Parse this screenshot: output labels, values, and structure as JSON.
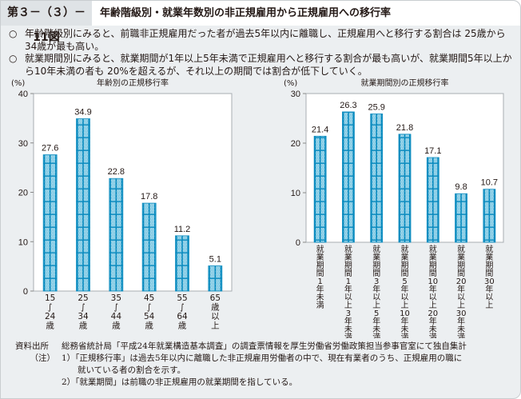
{
  "header": {
    "figure_number": "第３－（３）－11図",
    "title": "年齢階級別・就業年数別の非正規雇用から正規雇用への移行率"
  },
  "summary": [
    {
      "mark": "○",
      "text": "年齢階級別にみると、前職非正規雇用だった者が過去5年以内に離職し、正規雇用へと移行する割合は 25歳から34歳が最も高い。"
    },
    {
      "mark": "○",
      "text": "就業期間別にみると、就業期間が1年以上5年未満で正規雇用へと移行する割合が最も高いが、就業期間5年以上から10年未満の者も 20%を超えるが、それ以上の期間では割合が低下していく。"
    }
  ],
  "colors": {
    "bar_fill": "#7ec8e3",
    "bar_line": "#0a8bbf",
    "plot_bg": "#ffffff",
    "axis": "#888888"
  },
  "chart_data": [
    {
      "type": "bar",
      "title": "年齢別の正規移行率",
      "ylabel": "(%)",
      "xlabel": "",
      "ylim": [
        0,
        40
      ],
      "yticks": [
        0,
        10,
        20,
        30,
        40
      ],
      "yticklabels": [
        "0",
        "10",
        "20",
        "30",
        "40"
      ],
      "categories": [
        "15～24歳",
        "25～34歳",
        "35～44歳",
        "45～54歳",
        "55～64歳",
        "65歳以上"
      ],
      "category_lines": [
        [
          "15",
          "∫",
          "24",
          "歳"
        ],
        [
          "25",
          "∫",
          "34",
          "歳"
        ],
        [
          "35",
          "∫",
          "44",
          "歳"
        ],
        [
          "45",
          "∫",
          "54",
          "歳"
        ],
        [
          "55",
          "∫",
          "64",
          "歳"
        ],
        [
          "65",
          "歳",
          "以",
          "上"
        ]
      ],
      "values": [
        27.6,
        34.9,
        22.8,
        17.8,
        11.2,
        5.1
      ],
      "value_labels": [
        "27.6",
        "34.9",
        "22.8",
        "17.8",
        "11.2",
        "5.1"
      ],
      "grid": false
    },
    {
      "type": "bar",
      "title": "就業期間別の正規移行率",
      "ylabel": "(%)",
      "xlabel": "",
      "ylim": [
        0,
        30
      ],
      "yticks": [
        0,
        10,
        20,
        30
      ],
      "yticklabels": [
        "0",
        "10",
        "20",
        "30"
      ],
      "categories": [
        "就業期間1年未満",
        "就業期間1年以上3年未満",
        "就業期間3年以上5年未満",
        "就業期間5年以上10年未満",
        "就業期間10年以上20年未満",
        "就業期間20年以上30年未満",
        "就業期間30年以上"
      ],
      "category_lines": [
        [
          "就",
          "業",
          "期",
          "間",
          "1",
          "年",
          "未",
          "満"
        ],
        [
          "就",
          "業",
          "期",
          "間",
          "1",
          "年",
          "以",
          "上",
          "3",
          "年",
          "未",
          "満"
        ],
        [
          "就",
          "業",
          "期",
          "間",
          "3",
          "年",
          "以",
          "上",
          "5",
          "年",
          "未",
          "満"
        ],
        [
          "就",
          "業",
          "期",
          "間",
          "5",
          "年",
          "以",
          "上",
          "10",
          "年",
          "未",
          "満"
        ],
        [
          "就",
          "業",
          "期",
          "間",
          "10",
          "年",
          "以",
          "上",
          "20",
          "年",
          "未",
          "満"
        ],
        [
          "就",
          "業",
          "期",
          "間",
          "20",
          "年",
          "以",
          "上",
          "30",
          "年",
          "未",
          "満"
        ],
        [
          "就",
          "業",
          "期",
          "間",
          "30",
          "年",
          "以",
          "上"
        ]
      ],
      "values": [
        21.4,
        26.3,
        25.9,
        21.8,
        17.1,
        9.8,
        10.7
      ],
      "value_labels": [
        "21.4",
        "26.3",
        "25.9",
        "21.8",
        "17.1",
        "9.8",
        "10.7"
      ],
      "grid": false
    }
  ],
  "source": {
    "label": "資料出所",
    "text": "総務省統計局「平成24年就業構造基本調査」の調査票情報を厚生労働省労働政策担当参事官室にて独自集計"
  },
  "notes": {
    "label": "（注）",
    "items": [
      "1）「正規移行率」は過去5年以内に離職した非正規雇用労働者の中で、現在有業者のうち、正規雇用の職に",
      "就いている者の割合を示す。",
      "2）「就業期間」は前職の非正規雇用の就業期間を指している。"
    ]
  }
}
